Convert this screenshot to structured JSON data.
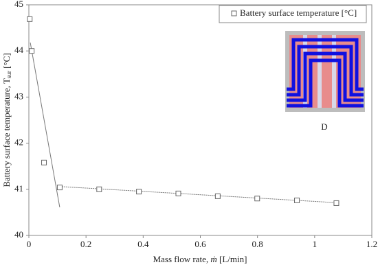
{
  "chart_data": {
    "type": "scatter",
    "xlabel": {
      "text": "Mass flow rate, ",
      "symbol": "ṁ",
      "unit": " [L/min]"
    },
    "ylabel": {
      "text": "Battery surface temperature, T",
      "sub": "sur",
      "unit": " [°C]"
    },
    "series": [
      {
        "name": "Battery surface temperature [°C]",
        "color": "#666666",
        "x": [
          0.003,
          0.01,
          0.053,
          0.108,
          0.246,
          0.385,
          0.523,
          0.661,
          0.799,
          0.938,
          1.076
        ],
        "values": [
          44.69,
          44.0,
          41.58,
          41.04,
          41.0,
          40.95,
          40.91,
          40.85,
          40.8,
          40.76,
          40.7
        ]
      }
    ],
    "trendlines": [
      {
        "x": [
          0.005,
          0.108
        ],
        "y": [
          44.18,
          40.61
        ]
      },
      {
        "x": [
          0.108,
          1.076
        ],
        "y": [
          41.06,
          40.71
        ]
      }
    ],
    "inset_label": "D",
    "xlim": [
      0,
      1.2
    ],
    "xticks": [
      0,
      0.2,
      0.4,
      0.6,
      0.8,
      1,
      1.2
    ],
    "ylim": [
      40,
      45
    ],
    "yticks": [
      40,
      41,
      42,
      43,
      44,
      45
    ],
    "legend": "top-right"
  }
}
